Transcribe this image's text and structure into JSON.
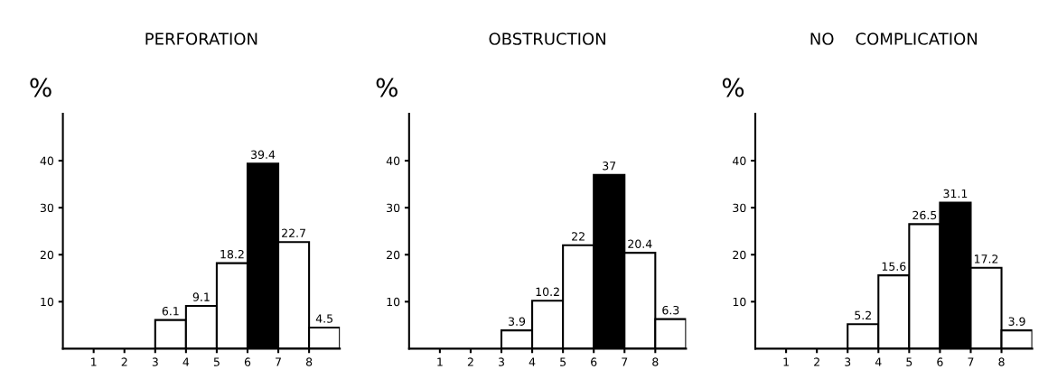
{
  "chart_data": [
    {
      "type": "histogram",
      "title": "PERFORATION",
      "ylabel": "%",
      "bins": [
        3,
        4,
        5,
        6,
        7,
        8,
        9
      ],
      "values": [
        6.1,
        9.1,
        18.2,
        39.4,
        22.7,
        4.5
      ],
      "colors": [
        "#ffffff",
        "#ffffff",
        "#ffffff",
        "#000000",
        "#ffffff",
        "#ffffff"
      ],
      "xlim": [
        0,
        9
      ],
      "xticks": [
        1,
        2,
        3,
        4,
        5,
        6,
        7,
        8
      ],
      "ylim": [
        0,
        50
      ],
      "yticks": [
        10,
        20,
        30,
        40
      ],
      "data_labels": true,
      "grid": false,
      "legend": false
    },
    {
      "type": "histogram",
      "title": "OBSTRUCTION",
      "ylabel": "%",
      "bins": [
        3,
        4,
        5,
        6,
        7,
        8,
        9
      ],
      "values": [
        3.9,
        10.2,
        22,
        37,
        20.4,
        6.3
      ],
      "colors": [
        "#ffffff",
        "#ffffff",
        "#ffffff",
        "#000000",
        "#ffffff",
        "#ffffff"
      ],
      "xlim": [
        0,
        9
      ],
      "xticks": [
        1,
        2,
        3,
        4,
        5,
        6,
        7,
        8
      ],
      "ylim": [
        0,
        50
      ],
      "yticks": [
        10,
        20,
        30,
        40
      ],
      "data_labels": true,
      "grid": false,
      "legend": false
    },
    {
      "type": "histogram",
      "title": "NO    COMPLICATION",
      "ylabel": "%",
      "bins": [
        3,
        4,
        5,
        6,
        7,
        8,
        9
      ],
      "values": [
        5.2,
        15.6,
        26.5,
        31.1,
        17.2,
        3.9
      ],
      "colors": [
        "#ffffff",
        "#ffffff",
        "#ffffff",
        "#000000",
        "#ffffff",
        "#ffffff"
      ],
      "xlim": [
        0,
        9
      ],
      "xticks": [
        1,
        2,
        3,
        4,
        5,
        6,
        7,
        8
      ],
      "ylim": [
        0,
        50
      ],
      "yticks": [
        10,
        20,
        30,
        40
      ],
      "data_labels": true,
      "grid": false,
      "legend": false
    }
  ]
}
